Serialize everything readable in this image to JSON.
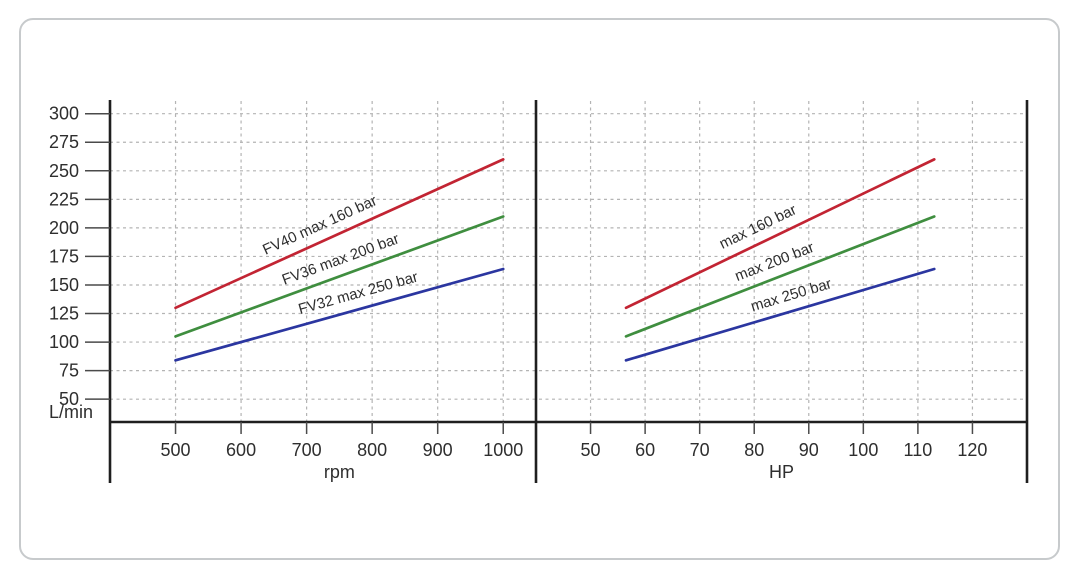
{
  "figure": {
    "background": "#ffffff",
    "card_border_color": "#c7cacc"
  },
  "chart_data": {
    "type": "line",
    "title": "",
    "ylabel": "L/min",
    "y_ticks": [
      50,
      75,
      100,
      125,
      150,
      175,
      200,
      225,
      250,
      275,
      300
    ],
    "ylim": [
      30,
      312
    ],
    "grid": "dashed",
    "legend_position": "none",
    "panels": [
      {
        "xlabel": "rpm",
        "x_ticks": [
          500,
          600,
          700,
          800,
          900,
          1000
        ],
        "xlim": [
          400,
          1050
        ],
        "x_key": "rpm",
        "label_key": "label_left",
        "label_t": [
          0.46,
          0.52,
          0.57
        ]
      },
      {
        "xlabel": "HP",
        "x_ticks": [
          50,
          60,
          70,
          80,
          90,
          100,
          110,
          120
        ],
        "xlim": [
          40,
          130
        ],
        "x_key": "hp",
        "label_key": "label_right",
        "label_t": [
          0.45,
          0.5,
          0.55
        ]
      }
    ],
    "series": [
      {
        "name": "FV40",
        "label_left": "FV40 max 160 bar",
        "label_right": "max 160 bar",
        "color": "#c22433",
        "rpm": [
          500,
          1000
        ],
        "hp": [
          56.5,
          113
        ],
        "flow_lmin": [
          130,
          260
        ]
      },
      {
        "name": "FV36",
        "label_left": "FV36 max 200 bar",
        "label_right": "max 200 bar",
        "color": "#3f8e3f",
        "rpm": [
          500,
          1000
        ],
        "hp": [
          56.5,
          113
        ],
        "flow_lmin": [
          105,
          210
        ]
      },
      {
        "name": "FV32",
        "label_left": "FV32 max 250 bar",
        "label_right": "max 250 bar",
        "color": "#2b36a0",
        "rpm": [
          500,
          1000
        ],
        "hp": [
          56.5,
          113
        ],
        "flow_lmin": [
          84,
          164
        ]
      }
    ],
    "colors": {
      "axis": "#1f1f1f",
      "tick": "#4a4a4a",
      "grid": "#b4b4b4",
      "text": "#2e2e2e"
    }
  }
}
